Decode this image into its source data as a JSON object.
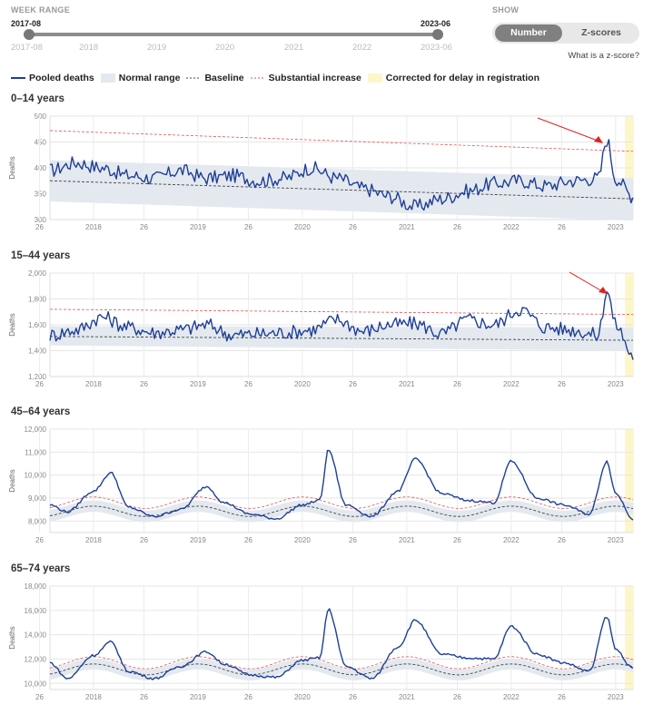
{
  "controls": {
    "week_range_label": "WEEK RANGE",
    "range_start": "2017-08",
    "range_end": "2023-06",
    "range_start_tick": "2017-08",
    "range_end_tick": "2023-06",
    "year_ticks": [
      "2018",
      "2019",
      "2020",
      "2021",
      "2022"
    ],
    "show_label": "SHOW",
    "show_options": [
      "Number",
      "Z-scores"
    ],
    "show_selected": "Number",
    "zscore_link": "What is a z-score?"
  },
  "legend": {
    "pooled": "Pooled deaths",
    "normal": "Normal range",
    "baseline": "Baseline",
    "substantial": "Substantial increase",
    "corrected": "Corrected for delay in registration"
  },
  "colors": {
    "pooled": "#1f3f96",
    "normal_range": "#e4e9f0",
    "baseline": "#444444",
    "substantial": "#e05555",
    "corrected": "#fdf6c8",
    "arrow": "#e32020"
  },
  "chart_data": [
    {
      "type": "line",
      "title": "0–14 years",
      "ylabel": "Deaths",
      "ylim": [
        300,
        500
      ],
      "yticks": [
        "300",
        "350",
        "400",
        "450",
        "500"
      ],
      "xlim": [
        "2017-08",
        "2023-03"
      ],
      "xticks": [
        "26",
        "2018",
        "26",
        "2019",
        "26",
        "2020",
        "26",
        "2021",
        "26",
        "2022",
        "26",
        "2023"
      ],
      "baseline": {
        "start": 375,
        "end": 340
      },
      "normal_range": {
        "start_low": 335,
        "start_high": 415,
        "end_low": 298,
        "end_high": 380
      },
      "substantial_increase": {
        "start": 472,
        "end": 432
      },
      "annotation": "arrow",
      "pooled_deaths": [
        {
          "x": "2017-08",
          "y": 395
        },
        {
          "x": "2017-11",
          "y": 410
        },
        {
          "x": "2018-02",
          "y": 400
        },
        {
          "x": "2018-05",
          "y": 385
        },
        {
          "x": "2018-08",
          "y": 380
        },
        {
          "x": "2018-11",
          "y": 395
        },
        {
          "x": "2019-02",
          "y": 380
        },
        {
          "x": "2019-05",
          "y": 385
        },
        {
          "x": "2019-08",
          "y": 375
        },
        {
          "x": "2019-11",
          "y": 380
        },
        {
          "x": "2020-02",
          "y": 400
        },
        {
          "x": "2020-05",
          "y": 380
        },
        {
          "x": "2020-08",
          "y": 360
        },
        {
          "x": "2020-11",
          "y": 345
        },
        {
          "x": "2021-02",
          "y": 325
        },
        {
          "x": "2021-05",
          "y": 340
        },
        {
          "x": "2021-08",
          "y": 355
        },
        {
          "x": "2021-11",
          "y": 370
        },
        {
          "x": "2022-02",
          "y": 375
        },
        {
          "x": "2022-05",
          "y": 365
        },
        {
          "x": "2022-08",
          "y": 375
        },
        {
          "x": "2022-11",
          "y": 380
        },
        {
          "x": "2022-12",
          "y": 455
        },
        {
          "x": "2023-01",
          "y": 380
        },
        {
          "x": "2023-03",
          "y": 345
        }
      ]
    },
    {
      "type": "line",
      "title": "15–44 years",
      "ylabel": "Deaths",
      "ylim": [
        1200,
        2000
      ],
      "yticks": [
        "1,200",
        "1,400",
        "1,600",
        "1,800",
        "2,000"
      ],
      "xlim": [
        "2017-08",
        "2023-03"
      ],
      "xticks": [
        "26",
        "2018",
        "26",
        "2019",
        "26",
        "2020",
        "26",
        "2021",
        "26",
        "2022",
        "26",
        "2023"
      ],
      "baseline": {
        "start": 1510,
        "end": 1480
      },
      "normal_range": {
        "start_low": 1440,
        "start_high": 1590,
        "end_low": 1400,
        "end_high": 1580
      },
      "substantial_increase": {
        "start": 1720,
        "end": 1680
      },
      "annotation": "arrow",
      "pooled_deaths": [
        {
          "x": "2017-08",
          "y": 1520
        },
        {
          "x": "2017-11",
          "y": 1560
        },
        {
          "x": "2018-02",
          "y": 1660
        },
        {
          "x": "2018-05",
          "y": 1580
        },
        {
          "x": "2018-08",
          "y": 1540
        },
        {
          "x": "2018-11",
          "y": 1560
        },
        {
          "x": "2019-02",
          "y": 1600
        },
        {
          "x": "2019-05",
          "y": 1520
        },
        {
          "x": "2019-08",
          "y": 1530
        },
        {
          "x": "2019-11",
          "y": 1540
        },
        {
          "x": "2020-02",
          "y": 1560
        },
        {
          "x": "2020-05",
          "y": 1640
        },
        {
          "x": "2020-08",
          "y": 1550
        },
        {
          "x": "2020-11",
          "y": 1600
        },
        {
          "x": "2021-02",
          "y": 1610
        },
        {
          "x": "2021-05",
          "y": 1530
        },
        {
          "x": "2021-08",
          "y": 1640
        },
        {
          "x": "2021-11",
          "y": 1600
        },
        {
          "x": "2022-02",
          "y": 1720
        },
        {
          "x": "2022-05",
          "y": 1580
        },
        {
          "x": "2022-08",
          "y": 1560
        },
        {
          "x": "2022-11",
          "y": 1520
        },
        {
          "x": "2022-12",
          "y": 1870
        },
        {
          "x": "2023-01",
          "y": 1600
        },
        {
          "x": "2023-03",
          "y": 1360
        }
      ]
    },
    {
      "type": "line",
      "title": "45–64 years",
      "ylabel": "Deaths",
      "ylim": [
        7500,
        12000
      ],
      "yticks": [
        "8,000",
        "9,000",
        "10,000",
        "11,000",
        "12,000"
      ],
      "xlim": [
        "2017-08",
        "2023-03"
      ],
      "xticks": [
        "26",
        "2018",
        "26",
        "2019",
        "26",
        "2020",
        "26",
        "2021",
        "26",
        "2022",
        "26",
        "2023"
      ],
      "baseline": {
        "winter": 8650,
        "summer": 8200
      },
      "normal_range": {
        "half_width": 250
      },
      "substantial_increase": {
        "winter": 9050,
        "summer": 8550
      },
      "pooled_deaths": [
        {
          "x": "2017-08",
          "y": 8700
        },
        {
          "x": "2017-10",
          "y": 8400
        },
        {
          "x": "2018-01",
          "y": 9300
        },
        {
          "x": "2018-03",
          "y": 10100
        },
        {
          "x": "2018-05",
          "y": 8600
        },
        {
          "x": "2018-08",
          "y": 8200
        },
        {
          "x": "2018-11",
          "y": 8500
        },
        {
          "x": "2019-02",
          "y": 9500
        },
        {
          "x": "2019-04",
          "y": 8800
        },
        {
          "x": "2019-07",
          "y": 8300
        },
        {
          "x": "2019-10",
          "y": 8100
        },
        {
          "x": "2020-01",
          "y": 8700
        },
        {
          "x": "2020-03",
          "y": 8900
        },
        {
          "x": "2020-04",
          "y": 11100
        },
        {
          "x": "2020-06",
          "y": 8700
        },
        {
          "x": "2020-09",
          "y": 8200
        },
        {
          "x": "2020-12",
          "y": 9300
        },
        {
          "x": "2021-02",
          "y": 10700
        },
        {
          "x": "2021-05",
          "y": 9200
        },
        {
          "x": "2021-08",
          "y": 8900
        },
        {
          "x": "2021-11",
          "y": 8800
        },
        {
          "x": "2022-01",
          "y": 10600
        },
        {
          "x": "2022-04",
          "y": 9000
        },
        {
          "x": "2022-07",
          "y": 8700
        },
        {
          "x": "2022-10",
          "y": 8300
        },
        {
          "x": "2022-12",
          "y": 10600
        },
        {
          "x": "2023-01",
          "y": 9200
        },
        {
          "x": "2023-03",
          "y": 8100
        }
      ]
    },
    {
      "type": "line",
      "title": "65–74 years",
      "ylabel": "Deaths",
      "ylim": [
        9500,
        18000
      ],
      "yticks": [
        "10,000",
        "12,000",
        "14,000",
        "16,000",
        "18,000"
      ],
      "xlim": [
        "2017-08",
        "2023-03"
      ],
      "xticks": [
        "26",
        "2018",
        "26",
        "2019",
        "26",
        "2020",
        "26",
        "2021",
        "26",
        "2022",
        "26",
        "2023"
      ],
      "baseline": {
        "winter": 11600,
        "summer": 10700
      },
      "normal_range": {
        "half_width": 450
      },
      "substantial_increase": {
        "winter": 12200,
        "summer": 11200
      },
      "pooled_deaths": [
        {
          "x": "2017-08",
          "y": 11700
        },
        {
          "x": "2017-10",
          "y": 10400
        },
        {
          "x": "2018-01",
          "y": 12300
        },
        {
          "x": "2018-03",
          "y": 13400
        },
        {
          "x": "2018-05",
          "y": 11000
        },
        {
          "x": "2018-08",
          "y": 10400
        },
        {
          "x": "2018-11",
          "y": 11400
        },
        {
          "x": "2019-02",
          "y": 12600
        },
        {
          "x": "2019-04",
          "y": 11600
        },
        {
          "x": "2019-07",
          "y": 10700
        },
        {
          "x": "2019-10",
          "y": 10500
        },
        {
          "x": "2020-01",
          "y": 11900
        },
        {
          "x": "2020-03",
          "y": 12100
        },
        {
          "x": "2020-04",
          "y": 16100
        },
        {
          "x": "2020-06",
          "y": 11400
        },
        {
          "x": "2020-09",
          "y": 10400
        },
        {
          "x": "2020-12",
          "y": 13000
        },
        {
          "x": "2021-02",
          "y": 15200
        },
        {
          "x": "2021-05",
          "y": 12400
        },
        {
          "x": "2021-08",
          "y": 12100
        },
        {
          "x": "2021-11",
          "y": 12000
        },
        {
          "x": "2022-01",
          "y": 14700
        },
        {
          "x": "2022-04",
          "y": 12400
        },
        {
          "x": "2022-07",
          "y": 11700
        },
        {
          "x": "2022-10",
          "y": 11000
        },
        {
          "x": "2022-12",
          "y": 15500
        },
        {
          "x": "2023-01",
          "y": 12800
        },
        {
          "x": "2023-03",
          "y": 11200
        }
      ]
    }
  ]
}
